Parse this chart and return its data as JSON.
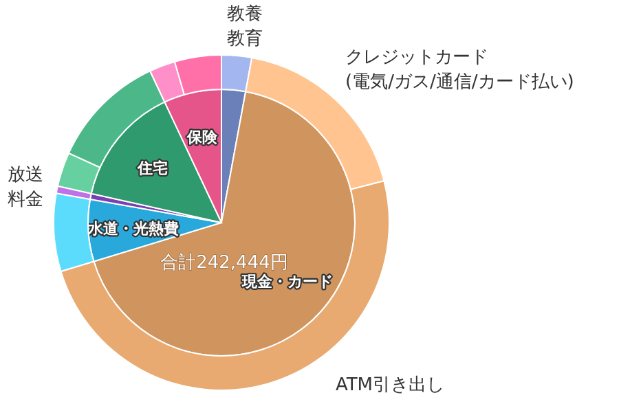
{
  "chart_data": [
    {
      "type": "pie",
      "categories": [
        null,
        "現金・カード",
        "水道・光熱費",
        null,
        "住宅",
        "保険"
      ],
      "values": [
        2.9,
        67.4,
        7.5,
        0.7,
        14.5,
        7.0
      ],
      "colors": [
        "#6b80b8",
        "#d0955f",
        "#29a8dc",
        "#7a3fb0",
        "#2e9a6e",
        "#e5558a"
      ],
      "annotations": [
        "合計242,444円"
      ]
    },
    {
      "type": "donut",
      "categories": [
        "教養教育",
        "クレジットカード\n(電気/ガス/通信/カード払い)",
        "ATM引き出し",
        null,
        "放送料金",
        null,
        null,
        null,
        null
      ],
      "values": [
        2.9,
        18.1,
        49.3,
        7.5,
        0.7,
        3.3,
        11.2,
        2.5,
        4.5
      ],
      "colors": [
        "#a4b6f0",
        "#ffc48f",
        "#e8aa70",
        "#5cdcfc",
        "#c070e8",
        "#66d0a0",
        "#4cb88a",
        "#ff8fc8",
        "#ff6fa8"
      ]
    }
  ]
}
